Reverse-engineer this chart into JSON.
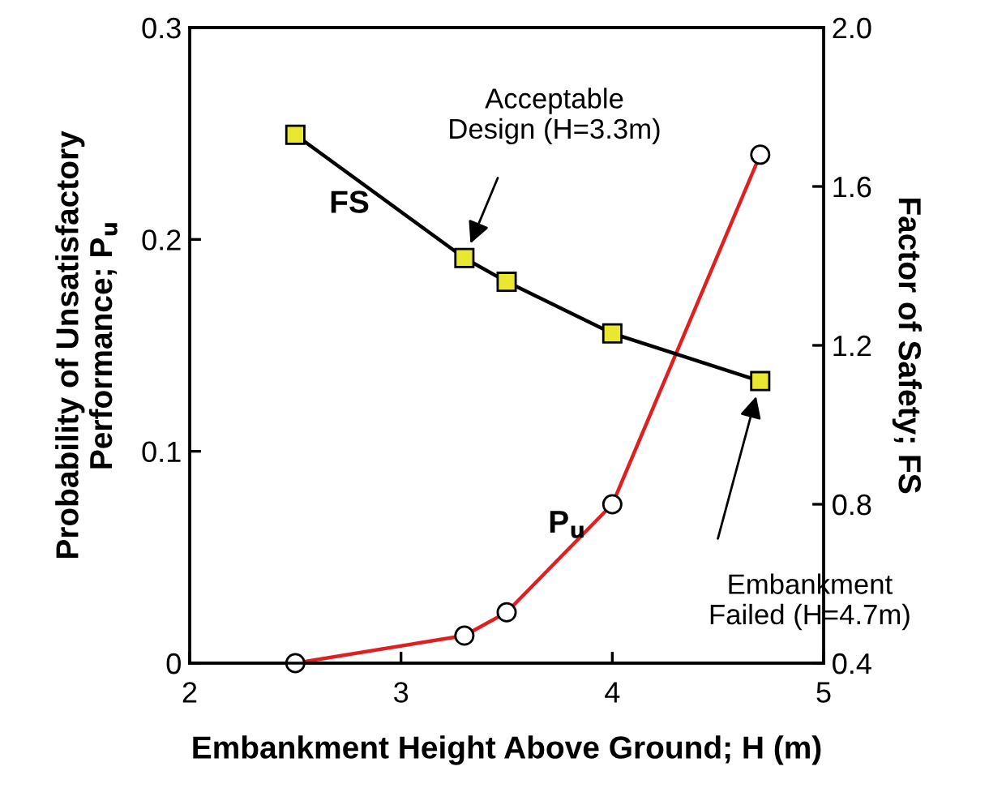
{
  "chart_data": {
    "type": "line",
    "xlabel": "Embankment Height Above Ground; H (m)",
    "ylabel": "Probability of Unsatisfactory\nPerformance; P$_{u}$",
    "y2label": "Factor of Safety; FS",
    "x": [
      2.5,
      3.3,
      3.5,
      4.0,
      4.7
    ],
    "series": [
      {
        "color": "#e02020",
        "marker": "circle",
        "values": [
          0,
          0.013,
          0.024,
          0.075,
          0.24
        ]
      },
      {
        "color": "#000000",
        "marker": "square",
        "axis": "y2",
        "values": [
          1.73,
          1.42,
          1.36,
          1.23,
          1.11
        ]
      }
    ],
    "annotations": [
      "Acceptable\nDesign (H=3.3m)",
      "Embankment\nFailed (H=4.7m)",
      "FS",
      "P$_{u}$"
    ],
    "xlim": [
      2,
      5
    ],
    "xticks": [
      2,
      3,
      4,
      5
    ],
    "ylim": [
      0,
      0.3
    ],
    "yticks": [
      0,
      0.1,
      0.2,
      0.3
    ],
    "y2lim": [
      0.4,
      2.0
    ],
    "y2ticks": [
      0.4,
      0.8,
      1.2,
      1.6,
      {
        "value": 2.0,
        "label": "2.0"
      }
    ],
    "grid": false,
    "legend": false,
    "line_style": "solid"
  }
}
